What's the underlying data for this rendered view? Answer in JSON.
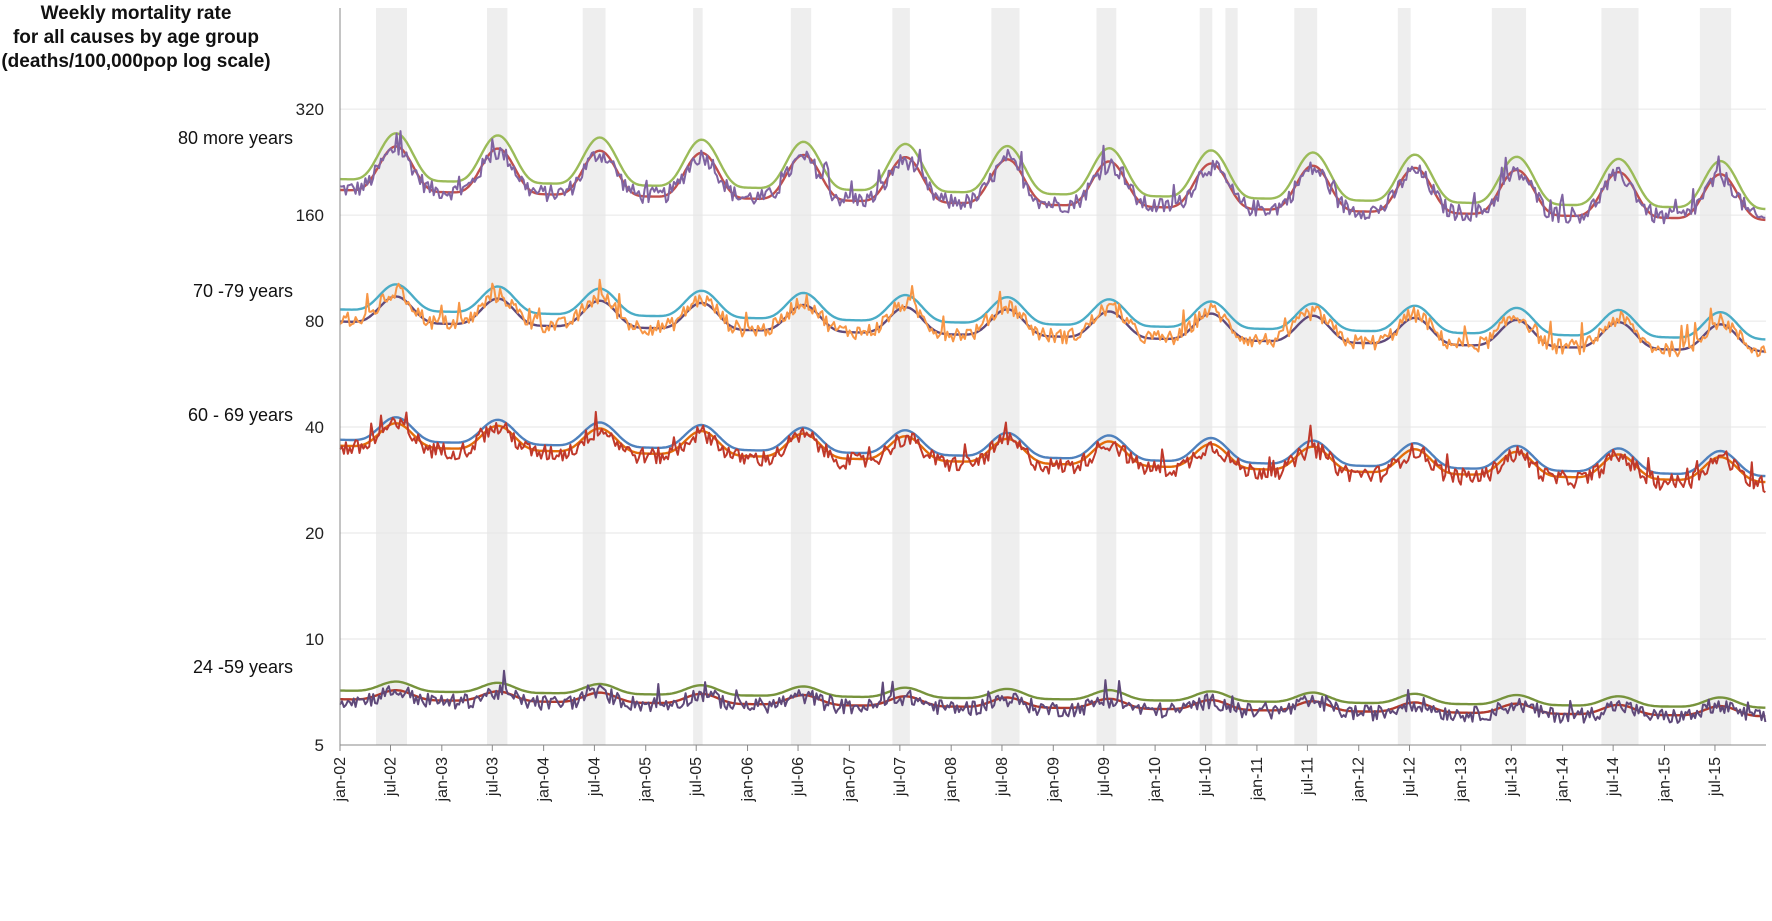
{
  "chart_data": {
    "type": "line",
    "title": [
      "Weekly mortality rate",
      "for all causes by age group",
      "(deaths/100,000pop log scale)"
    ],
    "yscale": "log",
    "y_ticks": [
      5,
      10,
      20,
      40,
      80,
      160,
      320
    ],
    "y_tick_labels": [
      "5",
      "10",
      "20",
      "40",
      "80",
      "160",
      "320"
    ],
    "ylim": [
      5,
      620
    ],
    "x_range": [
      "2002-01-01",
      "2015-12-31"
    ],
    "x_ticks": [
      "2002-01-01",
      "2002-07-01",
      "2003-01-01",
      "2003-07-01",
      "2004-01-01",
      "2004-07-01",
      "2005-01-01",
      "2005-07-01",
      "2006-01-01",
      "2006-07-01",
      "2007-01-01",
      "2007-07-01",
      "2008-01-01",
      "2008-07-01",
      "2009-01-01",
      "2009-07-01",
      "2010-01-01",
      "2010-07-01",
      "2011-01-01",
      "2011-07-01",
      "2012-01-01",
      "2012-07-01",
      "2013-01-01",
      "2013-07-01",
      "2014-01-01",
      "2014-07-01",
      "2015-01-01",
      "2015-07-01"
    ],
    "x_tick_labels": [
      "jan-02",
      "jul-02",
      "jan-03",
      "jul-03",
      "jan-04",
      "jul-04",
      "jan-05",
      "jul-05",
      "jan-06",
      "jul-06",
      "jan-07",
      "jul-07",
      "jan-08",
      "jul-08",
      "jan-09",
      "jul-09",
      "jan-10",
      "jul-10",
      "jan-11",
      "jul-11",
      "jan-12",
      "jul-12",
      "jan-13",
      "jul-13",
      "jan-14",
      "jul-14",
      "jan-15",
      "jul-15"
    ],
    "grid": "horizontal",
    "shaded_periods": [
      [
        "2002-05-10",
        "2002-08-29"
      ],
      [
        "2003-06-12",
        "2003-08-24"
      ],
      [
        "2004-05-20",
        "2004-08-10"
      ],
      [
        "2005-06-20",
        "2005-07-24"
      ],
      [
        "2006-06-05",
        "2006-08-17"
      ],
      [
        "2007-06-04",
        "2007-08-06"
      ],
      [
        "2008-05-24",
        "2008-09-02"
      ],
      [
        "2009-06-05",
        "2009-08-15"
      ],
      [
        "2010-06-10",
        "2010-07-25"
      ],
      [
        "2010-09-10",
        "2010-10-24"
      ],
      [
        "2011-05-15",
        "2011-08-05"
      ],
      [
        "2012-05-20",
        "2012-07-05"
      ],
      [
        "2013-04-22",
        "2013-08-23"
      ],
      [
        "2014-05-20",
        "2014-09-30"
      ],
      [
        "2015-05-08",
        "2015-08-28"
      ]
    ],
    "groups": [
      {
        "label": "80 more years",
        "series": [
          {
            "role": "upper",
            "color": "#9bbb59",
            "base": 228,
            "amp": 0.2,
            "noise": 0.0
          },
          {
            "role": "expected",
            "color": "#c0504d",
            "base": 211,
            "amp": 0.19,
            "noise": 0.0
          },
          {
            "role": "observed",
            "color": "#8064a2",
            "base": 210,
            "amp": 0.17,
            "noise": 0.055
          }
        ],
        "trend": -0.014
      },
      {
        "label": "70 -79 years",
        "series": [
          {
            "role": "upper",
            "color": "#4bacc6",
            "base": 92,
            "amp": 0.11,
            "noise": 0.0
          },
          {
            "role": "expected",
            "color": "#604a7b",
            "base": 85,
            "amp": 0.11,
            "noise": 0.0
          },
          {
            "role": "observed",
            "color": "#f79646",
            "base": 86,
            "amp": 0.12,
            "noise": 0.05
          }
        ],
        "trend": -0.014
      },
      {
        "label": "60 - 69 years",
        "series": [
          {
            "role": "upper",
            "color": "#4f81bd",
            "base": 39,
            "amp": 0.1,
            "noise": 0.0
          },
          {
            "role": "expected",
            "color": "#e36c09",
            "base": 37.5,
            "amp": 0.1,
            "noise": 0.0
          },
          {
            "role": "observed",
            "color": "#c0392b",
            "base": 37,
            "amp": 0.1,
            "noise": 0.055
          }
        ],
        "trend": -0.017
      },
      {
        "label": "24 -59 years",
        "series": [
          {
            "role": "upper",
            "color": "#77933c",
            "base": 7.3,
            "amp": 0.04,
            "noise": 0.0
          },
          {
            "role": "expected",
            "color": "#b03a2e",
            "base": 6.9,
            "amp": 0.04,
            "noise": 0.0
          },
          {
            "role": "observed",
            "color": "#5f497a",
            "base": 6.85,
            "amp": 0.04,
            "noise": 0.05
          }
        ],
        "trend": -0.008
      }
    ]
  }
}
